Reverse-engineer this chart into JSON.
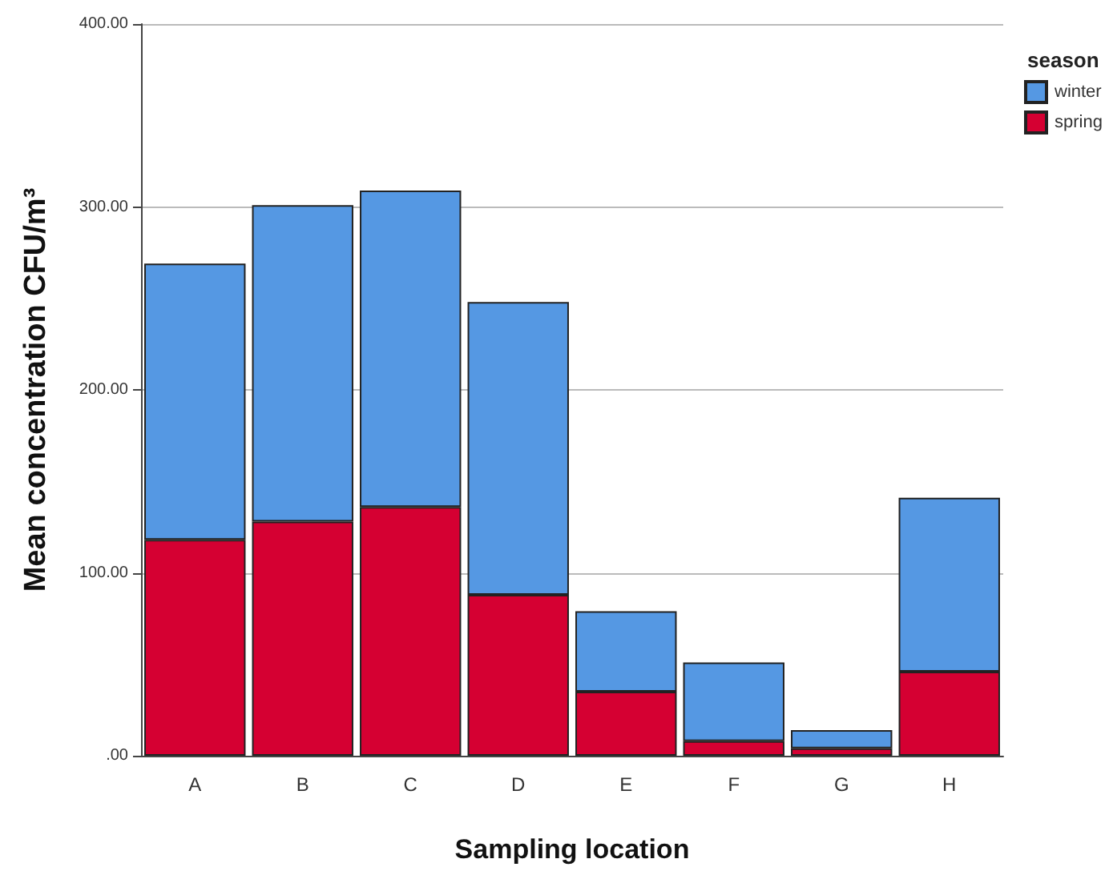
{
  "chart_data": {
    "type": "bar",
    "stacked": true,
    "xlabel": "Sampling location",
    "ylabel": "Mean concentration CFU/m³",
    "legend_title": "season",
    "legend": "right",
    "grid": "y",
    "categories": [
      "A",
      "B",
      "C",
      "D",
      "E",
      "F",
      "G",
      "H"
    ],
    "series": [
      {
        "name": "spring",
        "color": "#d50032",
        "values": [
          118,
          128,
          136,
          88,
          35,
          8,
          4,
          46
        ]
      },
      {
        "name": "winter",
        "color": "#5598e3",
        "values": [
          151,
          173,
          173,
          160,
          44,
          43,
          10,
          95
        ]
      }
    ],
    "ylim": [
      0,
      400
    ],
    "yticks": [
      {
        "value": 0,
        "label": ".00"
      },
      {
        "value": 100,
        "label": "100.00"
      },
      {
        "value": 200,
        "label": "200.00"
      },
      {
        "value": 300,
        "label": "300.00"
      },
      {
        "value": 400,
        "label": "400.00"
      }
    ]
  }
}
